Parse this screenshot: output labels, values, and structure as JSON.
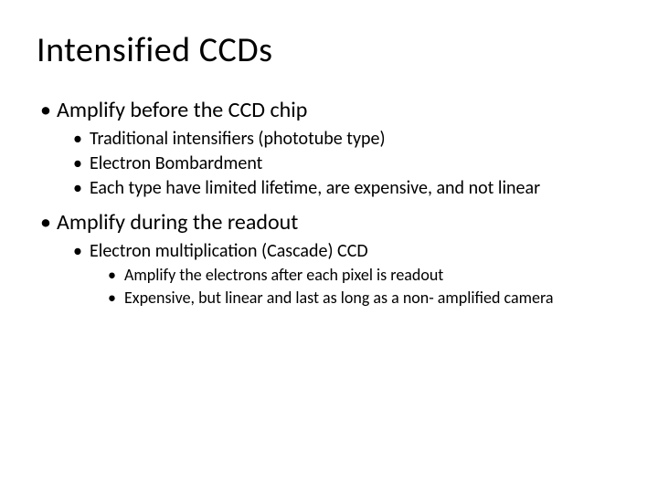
{
  "slide": {
    "title": "Intensified   CCDs",
    "background_color": "#ffffff",
    "text_color": "#000000",
    "title_fontsize": 38,
    "l1_fontsize": 24,
    "l2_fontsize": 20,
    "l3_fontsize": 18,
    "font_family": "Calibri",
    "bullets": {
      "b1": "Amplify before the CCD chip",
      "b1_1": "Traditional intensifiers (phototube type)",
      "b1_2": "Electron Bombardment",
      "b1_3": "Each type have limited lifetime, are expensive, and not linear",
      "b2": "Amplify during the readout",
      "b2_1": "Electron multiplication (Cascade) CCD",
      "b2_1_1": "Amplify the electrons after each pixel is readout",
      "b2_1_2": "Expensive, but linear and last as long as a non- amplified camera"
    }
  }
}
